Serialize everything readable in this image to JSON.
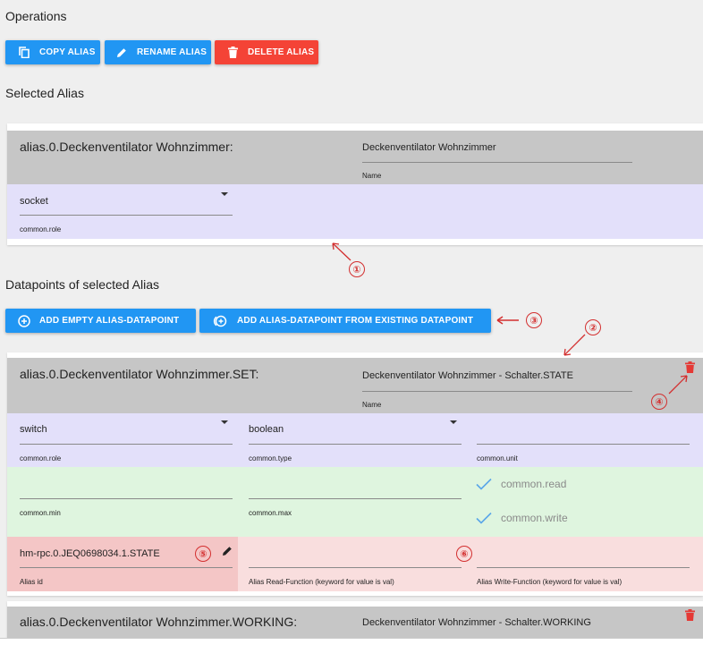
{
  "operations": {
    "heading": "Operations",
    "copy_label": "COPY ALIAS",
    "rename_label": "RENAME ALIAS",
    "delete_label": "DELETE ALIAS"
  },
  "selected_alias": {
    "heading": "Selected Alias",
    "id": "alias.0.Deckenventilator Wohnzimmer:",
    "name_value": "Deckenventilator Wohnzimmer",
    "name_label": "Name",
    "role_value": "socket",
    "role_label": "common.role"
  },
  "datapoints": {
    "heading": "Datapoints of selected Alias",
    "add_empty_label": "ADD EMPTY ALIAS-DATAPOINT",
    "add_existing_label": "ADD ALIAS-DATAPOINT FROM EXISTING DATAPOINT",
    "dp1": {
      "id": "alias.0.Deckenventilator Wohnzimmer.SET:",
      "name_value": "Deckenventilator Wohnzimmer - Schalter.STATE",
      "name_label": "Name",
      "role_value": "switch",
      "role_label": "common.role",
      "type_value": "boolean",
      "type_label": "common.type",
      "unit_value": "",
      "unit_label": "common.unit",
      "min_label": "common.min",
      "max_label": "common.max",
      "read_label": "common.read",
      "write_label": "common.write",
      "alias_id_value": "hm-rpc.0.JEQ0698034.1.STATE",
      "alias_id_label": "Alias id",
      "read_fn_label": "Alias Read-Function (keyword for value is val)",
      "write_fn_label": "Alias Write-Function (keyword for value is val)"
    },
    "dp2": {
      "id": "alias.0.Deckenventilator Wohnzimmer.WORKING:",
      "name_value": "Deckenventilator Wohnzimmer - Schalter.WORKING"
    }
  },
  "annotations": [
    "①",
    "②",
    "③",
    "④",
    "⑤",
    "⑥"
  ],
  "colors": {
    "button_blue": "#2196f3",
    "button_red": "#f44336",
    "annotation_red": "#d32f2f",
    "band_gray": "#c6c6c6",
    "band_lavender": "#e3e0fa",
    "band_green": "#dff5df",
    "band_pink": "#f9dede"
  },
  "icons": [
    "copy-icon",
    "pencil-icon",
    "trash-icon",
    "add-circle-icon",
    "add-circle-outline-icon",
    "check-icon",
    "chevron-down-icon"
  ]
}
